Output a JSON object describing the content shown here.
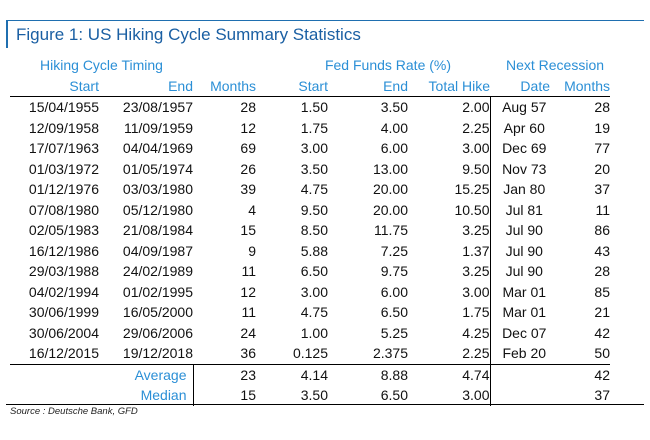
{
  "title": "Figure 1: US Hiking Cycle Summary Statistics",
  "groups": {
    "timing": "Hiking Cycle Timing",
    "ffr": "Fed Funds Rate (%)",
    "recession": "Next Recession"
  },
  "columns": [
    "Start",
    "End",
    "Months",
    "Start",
    "End",
    "Total Hike",
    "Date",
    "Months"
  ],
  "rows": [
    [
      "15/04/1955",
      "23/08/1957",
      "28",
      "1.50",
      "3.50",
      "2.00",
      "Aug 57",
      "28"
    ],
    [
      "12/09/1958",
      "11/09/1959",
      "12",
      "1.75",
      "4.00",
      "2.25",
      "Apr 60",
      "19"
    ],
    [
      "17/07/1963",
      "04/04/1969",
      "69",
      "3.00",
      "6.00",
      "3.00",
      "Dec 69",
      "77"
    ],
    [
      "01/03/1972",
      "01/05/1974",
      "26",
      "3.50",
      "13.00",
      "9.50",
      "Nov 73",
      "20"
    ],
    [
      "01/12/1976",
      "03/03/1980",
      "39",
      "4.75",
      "20.00",
      "15.25",
      "Jan 80",
      "37"
    ],
    [
      "07/08/1980",
      "05/12/1980",
      "4",
      "9.50",
      "20.00",
      "10.50",
      "Jul 81",
      "11"
    ],
    [
      "02/05/1983",
      "21/08/1984",
      "15",
      "8.50",
      "11.75",
      "3.25",
      "Jul 90",
      "86"
    ],
    [
      "16/12/1986",
      "04/09/1987",
      "9",
      "5.88",
      "7.25",
      "1.37",
      "Jul 90",
      "43"
    ],
    [
      "29/03/1988",
      "24/02/1989",
      "11",
      "6.50",
      "9.75",
      "3.25",
      "Jul 90",
      "28"
    ],
    [
      "04/02/1994",
      "01/02/1995",
      "12",
      "3.00",
      "6.00",
      "3.00",
      "Mar 01",
      "85"
    ],
    [
      "30/06/1999",
      "16/05/2000",
      "11",
      "4.75",
      "6.50",
      "1.75",
      "Mar 01",
      "21"
    ],
    [
      "30/06/2004",
      "29/06/2006",
      "24",
      "1.00",
      "5.25",
      "4.25",
      "Dec 07",
      "42"
    ],
    [
      "16/12/2015",
      "19/12/2018",
      "36",
      "0.125",
      "2.375",
      "2.25",
      "Feb 20",
      "50"
    ]
  ],
  "summary": [
    {
      "label": "Average",
      "months": "23",
      "start": "4.14",
      "end": "8.88",
      "hike": "4.74",
      "rec_months": "42"
    },
    {
      "label": "Median",
      "months": "15",
      "start": "3.50",
      "end": "6.50",
      "hike": "3.00",
      "rec_months": "37"
    }
  ],
  "source": "Source : Deutsche Bank, GFD",
  "colors": {
    "accent": "#2b8fd6",
    "title": "#1a5fa3"
  }
}
